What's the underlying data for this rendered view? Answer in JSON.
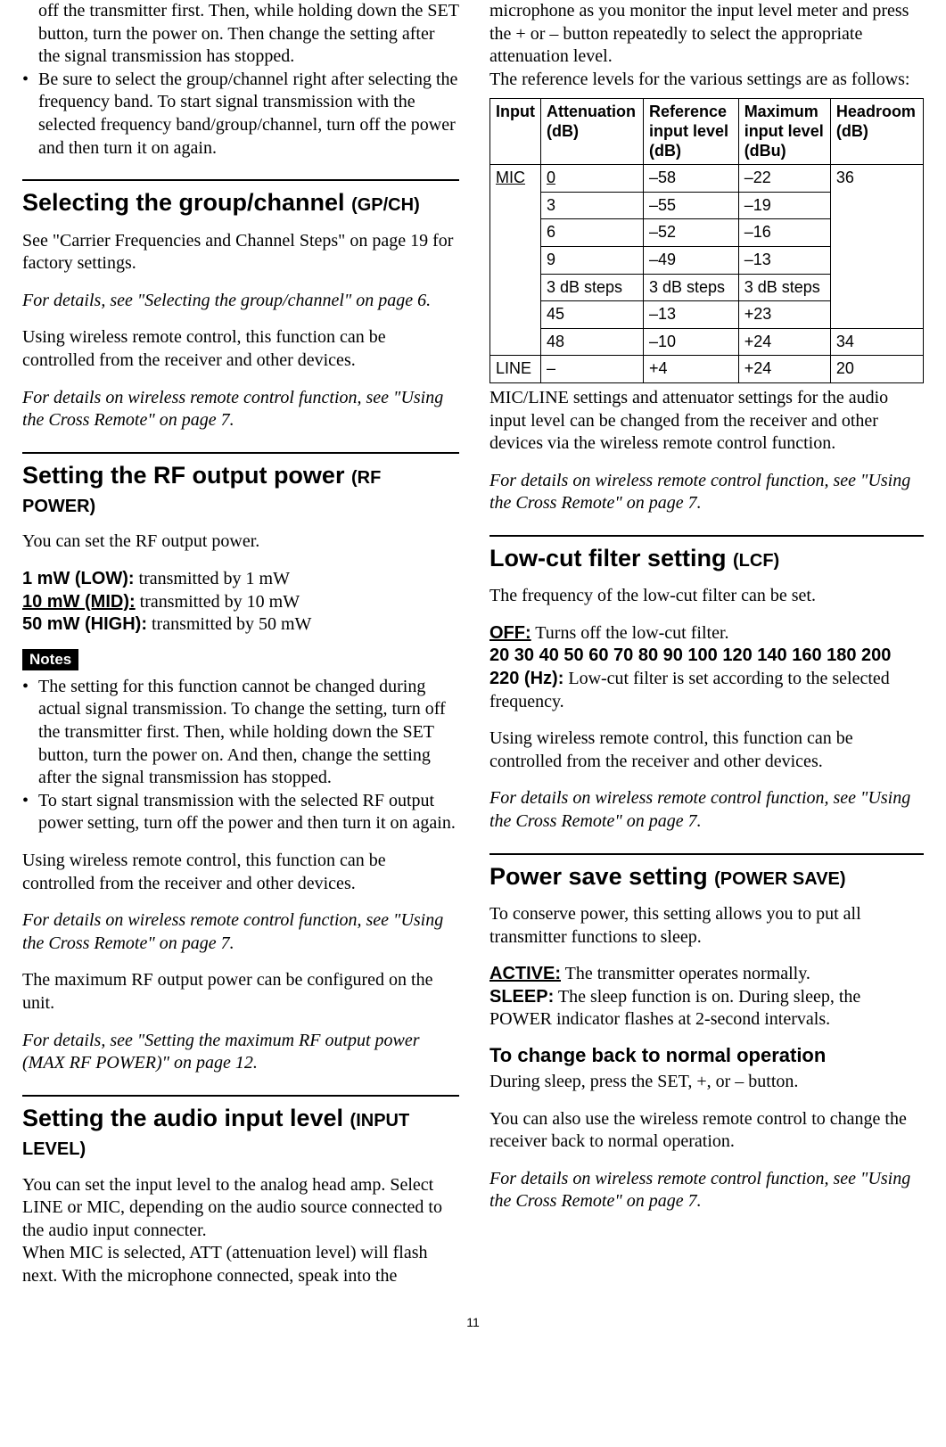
{
  "page_number": "11",
  "left": {
    "intro_fragment": "off the transmitter first. Then, while holding down the SET button, turn the power on. Then change the setting after the signal transmission has stopped.",
    "intro_bullet": "Be sure to select the group/channel right after selecting the frequency band. To start signal transmission with the selected frequency band/group/channel, turn off the power and then turn it on again.",
    "groupchannel": {
      "title": "Selecting the group/channel",
      "title_sub": "(GP/CH)",
      "p1": "See \"Carrier Frequencies and Channel Steps\" on page 19 for factory settings.",
      "p2": "For details, see \"Selecting the group/channel\" on page 6.",
      "p3": "Using wireless remote control, this function can be controlled from the receiver and other devices.",
      "p4": "For details on wireless remote control function, see \"Using the Cross Remote\" on page 7."
    },
    "rfpower": {
      "title": "Setting the RF output power",
      "title_sub": "(RF POWER)",
      "p1": "You can set the RF output power.",
      "opts": [
        {
          "label": "1 mW (LOW):",
          "text": " transmitted by 1 mW",
          "underline": false
        },
        {
          "label": "10 mW (MID):",
          "text": " transmitted by 10 mW",
          "underline": true
        },
        {
          "label": "50 mW (HIGH):",
          "text": " transmitted by 50 mW",
          "underline": false
        }
      ],
      "notes_label": "Notes",
      "notes": [
        "The setting for this function cannot be changed during actual signal transmission. To change the setting, turn off the transmitter first. Then, while holding down the SET button, turn the power on. And then, change the setting after the signal transmission has stopped.",
        "To start signal transmission with the selected RF output power setting, turn off the power and then turn it on again."
      ],
      "p2": "Using wireless remote control, this function can be controlled from the receiver and other devices.",
      "p3": "For details on wireless remote control function, see \"Using the Cross Remote\" on page 7.",
      "p4": "The maximum RF output power can be configured on the unit.",
      "p5": "For details, see \"Setting the maximum RF output power (MAX RF POWER)\" on page 12."
    },
    "inputlevel": {
      "title": "Setting the audio input level",
      "title_sub": "(INPUT LEVEL)",
      "p1": "You can set the input level to the analog head amp. Select LINE or MIC, depending on the audio source connected to the audio input connecter.",
      "p2": "When MIC is selected, ATT (attenuation level) will flash next. With the microphone connected, speak into the"
    }
  },
  "right": {
    "cont": "microphone as you monitor the input level meter and press the + or – button repeatedly to select the appropriate attenuation level.",
    "ref_intro": "The reference levels for the various settings are as follows:",
    "table": {
      "headers": [
        "Input",
        "Attenuation (dB)",
        "Reference input level (dB)",
        "Maximum input level (dBu)",
        "Headroom (dB)"
      ],
      "rows": [
        {
          "input": "MIC",
          "input_underline": true,
          "input_rowspan": 7,
          "att": "0",
          "att_underline": true,
          "ref": "–58",
          "max": "–22",
          "head": "36",
          "head_rowspan": 6
        },
        {
          "att": "3",
          "ref": "–55",
          "max": "–19"
        },
        {
          "att": "6",
          "ref": "–52",
          "max": "–16"
        },
        {
          "att": "9",
          "ref": "–49",
          "max": "–13"
        },
        {
          "att": "3 dB steps",
          "ref": "3 dB steps",
          "max": "3 dB steps"
        },
        {
          "att": "45",
          "ref": "–13",
          "max": "+23"
        },
        {
          "att": "48",
          "ref": "–10",
          "max": "+24",
          "head": "34"
        },
        {
          "input": "LINE",
          "att": "–",
          "ref": "+4",
          "max": "+24",
          "head": "20"
        }
      ]
    },
    "after_table": "MIC/LINE settings and attenuator settings for the audio input level can be changed from the receiver and other devices via the wireless remote control function.",
    "after_table2": "For details on wireless remote control function, see \"Using the Cross Remote\" on page 7.",
    "lcf": {
      "title": "Low-cut filter setting",
      "title_sub": "(LCF)",
      "p1": "The frequency of the low-cut filter can be set.",
      "off_label": "OFF:",
      "off_text": " Turns off the low-cut filter.",
      "freqs_label": "20  30  40  50  60  70  80  90  100  120 140 160 180 200 220 (Hz):",
      "freqs_text": " Low-cut filter is set according to the selected frequency.",
      "p2": "Using wireless remote control, this function can be controlled from the receiver and other devices.",
      "p3": "For details on wireless remote control function, see \"Using the Cross Remote\" on page 7."
    },
    "powersave": {
      "title": "Power save setting",
      "title_sub": "(POWER SAVE)",
      "p1": "To conserve power, this setting allows you to put all transmitter functions to sleep.",
      "active_label": "ACTIVE:",
      "active_text": " The transmitter operates normally.",
      "sleep_label": "SLEEP:",
      "sleep_text": " The sleep function is on. During sleep, the POWER indicator flashes at 2-second intervals.",
      "sub_title": "To change back to normal operation",
      "sub_p1": "During sleep, press the SET, +, or – button.",
      "sub_p2": "You can also use the wireless remote control to change the receiver back to normal operation.",
      "sub_p3": "For details on wireless remote control function, see \"Using the Cross Remote\" on page 7."
    }
  }
}
